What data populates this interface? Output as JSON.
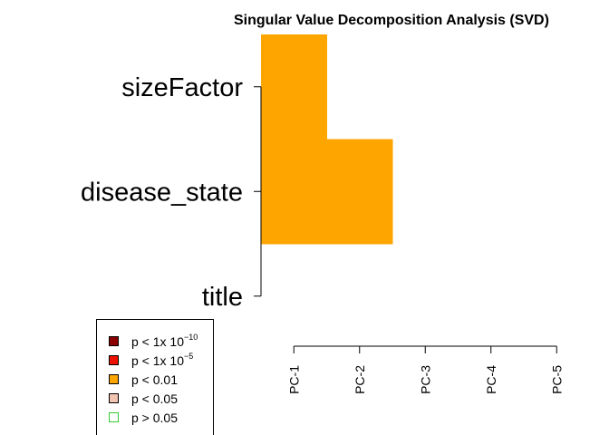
{
  "chart_data": {
    "type": "heatmap",
    "title": "Singular Value Decomposition Analysis (SVD)",
    "rows": [
      "title",
      "disease_state",
      "sizeFactor"
    ],
    "columns": [
      "PC-1",
      "PC-2",
      "PC-3",
      "PC-4",
      "PC-5"
    ],
    "significance": [
      [
        "none",
        "none",
        "none",
        "none",
        "none"
      ],
      [
        "p < 0.01",
        "p < 0.01",
        "none",
        "none",
        "none"
      ],
      [
        "p < 0.01",
        "none",
        "none",
        "none",
        "none"
      ]
    ],
    "legend": [
      {
        "label": "p < 1x 10",
        "sup": "−10",
        "fill": "#8B0000",
        "stroke": "#000000"
      },
      {
        "label": "p < 1x 10",
        "sup": "−5",
        "fill": "#EE1100",
        "stroke": "#000000"
      },
      {
        "label": "p < 0.01",
        "sup": "",
        "fill": "#FFA500",
        "stroke": "#000000"
      },
      {
        "label": "p < 0.05",
        "sup": "",
        "fill": "#F2C5B0",
        "stroke": "#000000"
      },
      {
        "label": "p > 0.05",
        "sup": "",
        "fill": "#FFFFFF",
        "stroke": "#33CC33"
      }
    ],
    "colors": {
      "p < 0.01": "#FFA500"
    },
    "legend_position": "bottom-left"
  }
}
